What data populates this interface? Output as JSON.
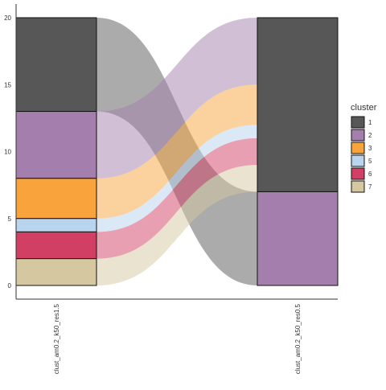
{
  "chart_data": {
    "type": "alluvial",
    "axes": [
      "clust_am0.2_k50_res1.5",
      "clust_am0.2_k50_res0.5"
    ],
    "ylim": [
      0,
      20
    ],
    "yticks": [
      0,
      5,
      10,
      15,
      20
    ],
    "grid": false,
    "legend": {
      "title": "cluster",
      "placement": "right",
      "entries": [
        {
          "label": "1",
          "color": "#575757"
        },
        {
          "label": "2",
          "color": "#a47fad"
        },
        {
          "label": "3",
          "color": "#f8a33b"
        },
        {
          "label": "5",
          "color": "#b8d4ef"
        },
        {
          "label": "6",
          "color": "#d13f64"
        },
        {
          "label": "7",
          "color": "#d5c8a0"
        }
      ]
    },
    "strata": [
      {
        "axis": 0,
        "cluster": "1",
        "count": 7
      },
      {
        "axis": 0,
        "cluster": "2",
        "count": 5
      },
      {
        "axis": 0,
        "cluster": "3",
        "count": 3
      },
      {
        "axis": 0,
        "cluster": "5",
        "count": 1
      },
      {
        "axis": 0,
        "cluster": "6",
        "count": 2
      },
      {
        "axis": 0,
        "cluster": "7",
        "count": 2
      },
      {
        "axis": 1,
        "cluster": "1",
        "count": 13
      },
      {
        "axis": 1,
        "cluster": "2",
        "count": 7
      }
    ],
    "flows": [
      {
        "from": "1",
        "to": "2",
        "value": 7,
        "fill_cluster": "1"
      },
      {
        "from": "2",
        "to": "1",
        "value": 5,
        "fill_cluster": "2"
      },
      {
        "from": "3",
        "to": "1",
        "value": 3,
        "fill_cluster": "3"
      },
      {
        "from": "5",
        "to": "1",
        "value": 1,
        "fill_cluster": "5"
      },
      {
        "from": "6",
        "to": "1",
        "value": 2,
        "fill_cluster": "6"
      },
      {
        "from": "7",
        "to": "1",
        "value": 2,
        "fill_cluster": "7"
      }
    ]
  }
}
